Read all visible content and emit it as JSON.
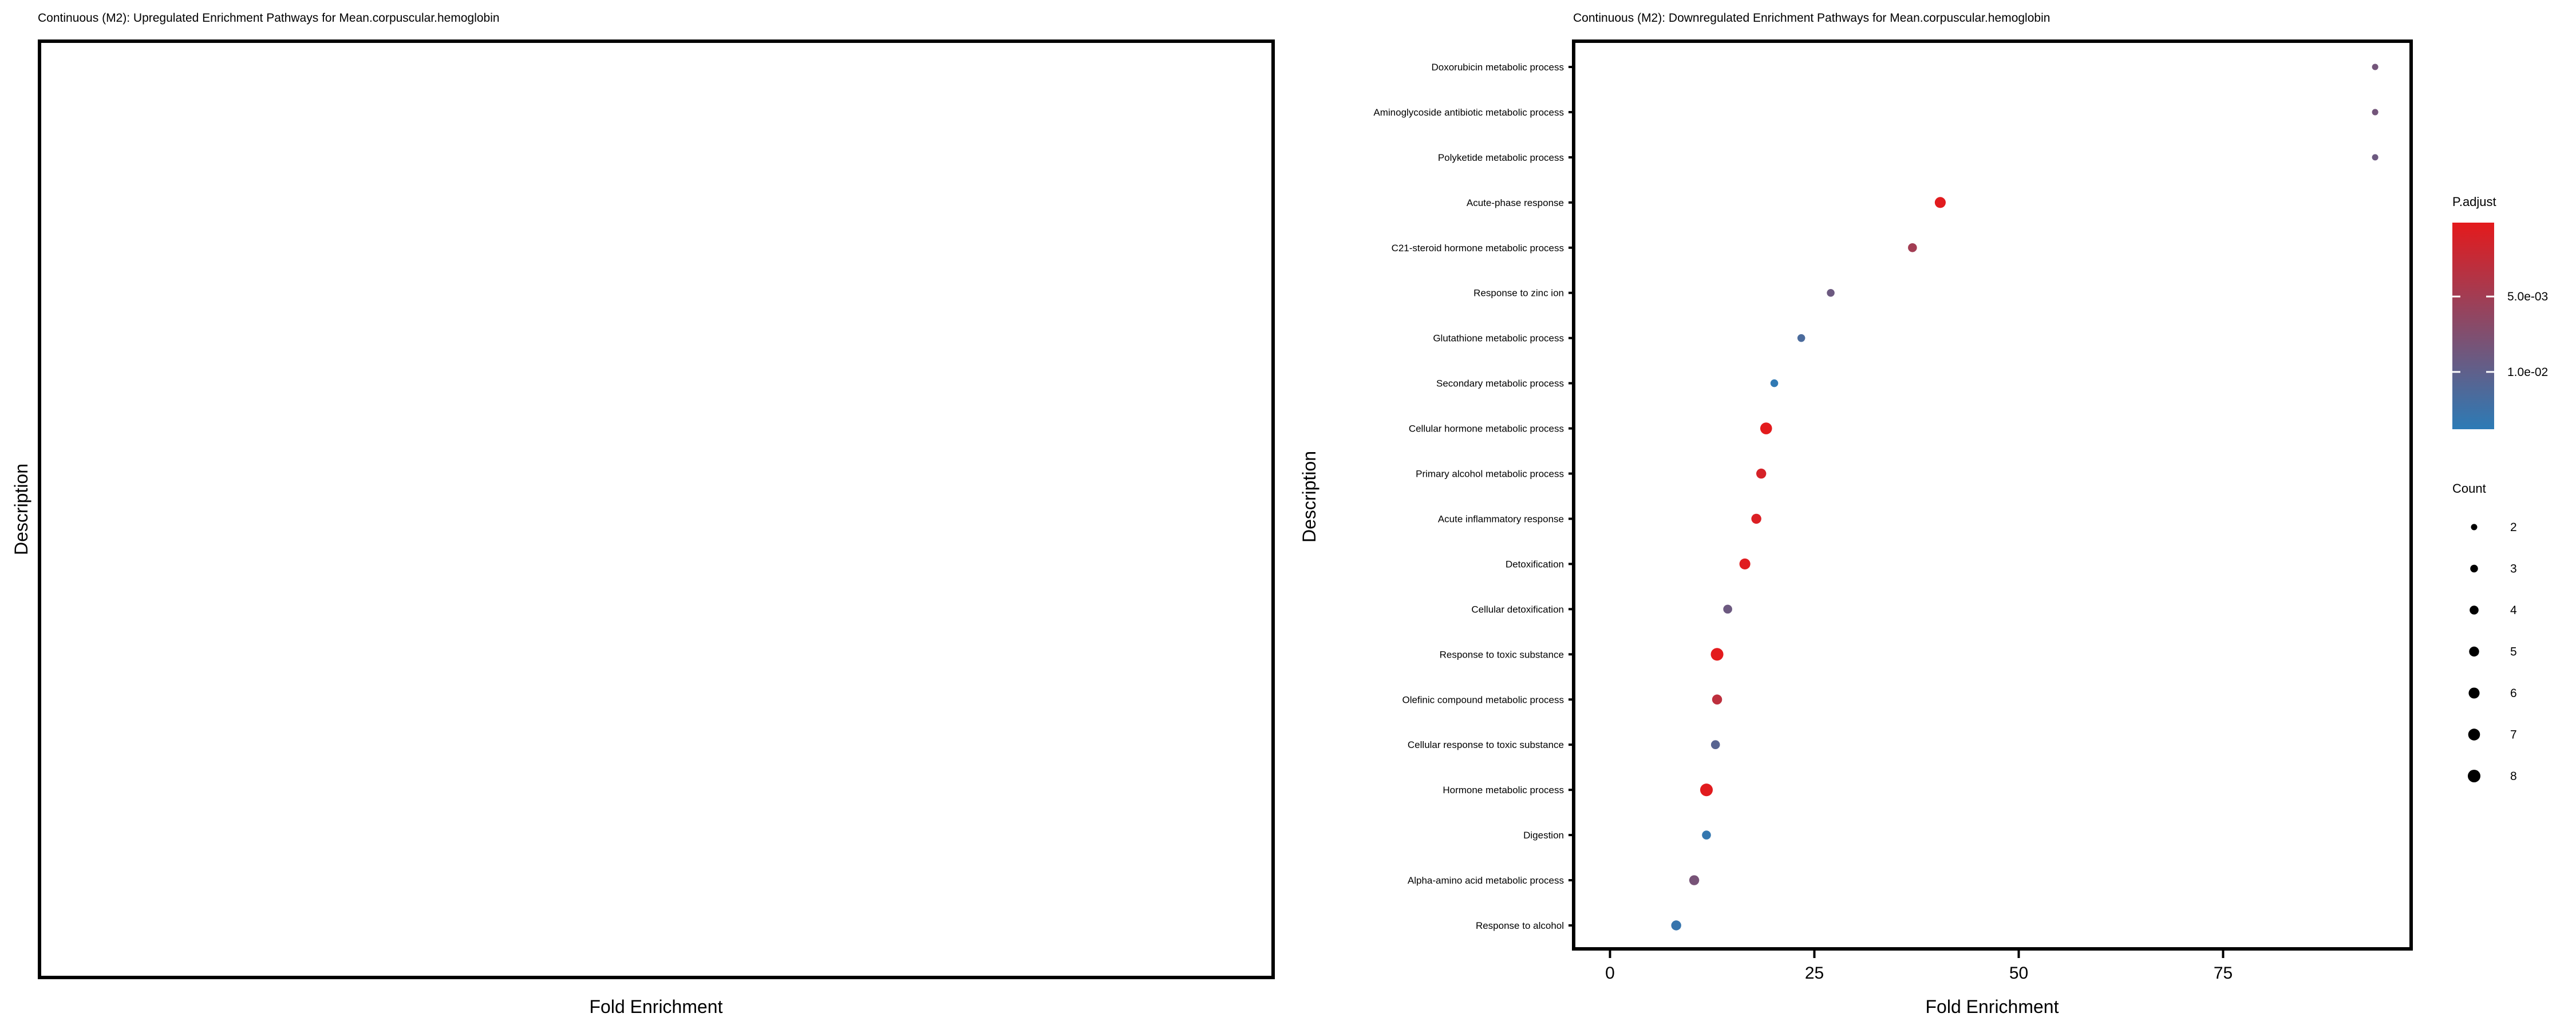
{
  "chart_data": [
    {
      "type": "scatter",
      "title": "Continuous (M2): Upregulated Enrichment Pathways for Mean.corpuscular.hemoglobin",
      "xlabel": "Fold Enrichment",
      "ylabel": "Description",
      "categories": [],
      "points": []
    },
    {
      "type": "scatter",
      "title": "Continuous (M2): Downregulated Enrichment Pathways for Mean.corpuscular.hemoglobin",
      "xlabel": "Fold Enrichment",
      "ylabel": "Description",
      "xlim": [
        -3,
        99.5
      ],
      "xticks": [
        0,
        25,
        50,
        75
      ],
      "xtick_labels": [
        "0",
        "25",
        "50",
        "75"
      ],
      "grid": false,
      "points": [
        {
          "label": "Doxorubicin metabolic process",
          "x": 93.6,
          "count": 2,
          "p_adjust": 0.0085
        },
        {
          "label": "Aminoglycoside antibiotic metabolic process",
          "x": 93.6,
          "count": 2,
          "p_adjust": 0.0085
        },
        {
          "label": "Polyketide metabolic process",
          "x": 93.6,
          "count": 2,
          "p_adjust": 0.009
        },
        {
          "label": "Acute-phase response",
          "x": 40.4,
          "count": 6,
          "p_adjust": 0.0003
        },
        {
          "label": "C21-steroid hormone metabolic process",
          "x": 37.0,
          "count": 4,
          "p_adjust": 0.005
        },
        {
          "label": "Response to zinc ion",
          "x": 27.0,
          "count": 3,
          "p_adjust": 0.009
        },
        {
          "label": "Glutathione metabolic process",
          "x": 23.4,
          "count": 3,
          "p_adjust": 0.0115
        },
        {
          "label": "Secondary metabolic process",
          "x": 20.1,
          "count": 3,
          "p_adjust": 0.0135
        },
        {
          "label": "Cellular hormone metabolic process",
          "x": 19.1,
          "count": 7,
          "p_adjust": 0.0002
        },
        {
          "label": "Primary alcohol metabolic process",
          "x": 18.5,
          "count": 5,
          "p_adjust": 0.0012
        },
        {
          "label": "Acute inflammatory response",
          "x": 17.9,
          "count": 5,
          "p_adjust": 0.0008
        },
        {
          "label": "Detoxification",
          "x": 16.5,
          "count": 6,
          "p_adjust": 0.0004
        },
        {
          "label": "Cellular detoxification",
          "x": 14.4,
          "count": 4,
          "p_adjust": 0.009
        },
        {
          "label": "Response to toxic substance",
          "x": 13.1,
          "count": 8,
          "p_adjust": 0.0002
        },
        {
          "label": "Olefinic compound metabolic process",
          "x": 13.1,
          "count": 5,
          "p_adjust": 0.003
        },
        {
          "label": "Cellular response to toxic substance",
          "x": 12.9,
          "count": 4,
          "p_adjust": 0.0105
        },
        {
          "label": "Hormone metabolic process",
          "x": 11.8,
          "count": 8,
          "p_adjust": 0.0003
        },
        {
          "label": "Digestion",
          "x": 11.8,
          "count": 4,
          "p_adjust": 0.0132
        },
        {
          "label": "Alpha-amino acid metabolic process",
          "x": 10.3,
          "count": 5,
          "p_adjust": 0.0082
        },
        {
          "label": "Response to alcohol",
          "x": 8.1,
          "count": 5,
          "p_adjust": 0.013
        }
      ],
      "legend": {
        "color_title": "P.adjust",
        "color_range": [
          0.0001,
          0.0138
        ],
        "color_ticks": [
          0.005,
          0.01
        ],
        "color_tick_labels": [
          "5.0e-03",
          "1.0e-02"
        ],
        "color_low_p": "#e41a1c",
        "color_high_p": "#2c7bb6",
        "size_title": "Count",
        "size_values": [
          2,
          3,
          4,
          5,
          6,
          7,
          8
        ],
        "size_labels": [
          "2",
          "3",
          "4",
          "5",
          "6",
          "7",
          "8"
        ],
        "placement": "right"
      }
    }
  ]
}
